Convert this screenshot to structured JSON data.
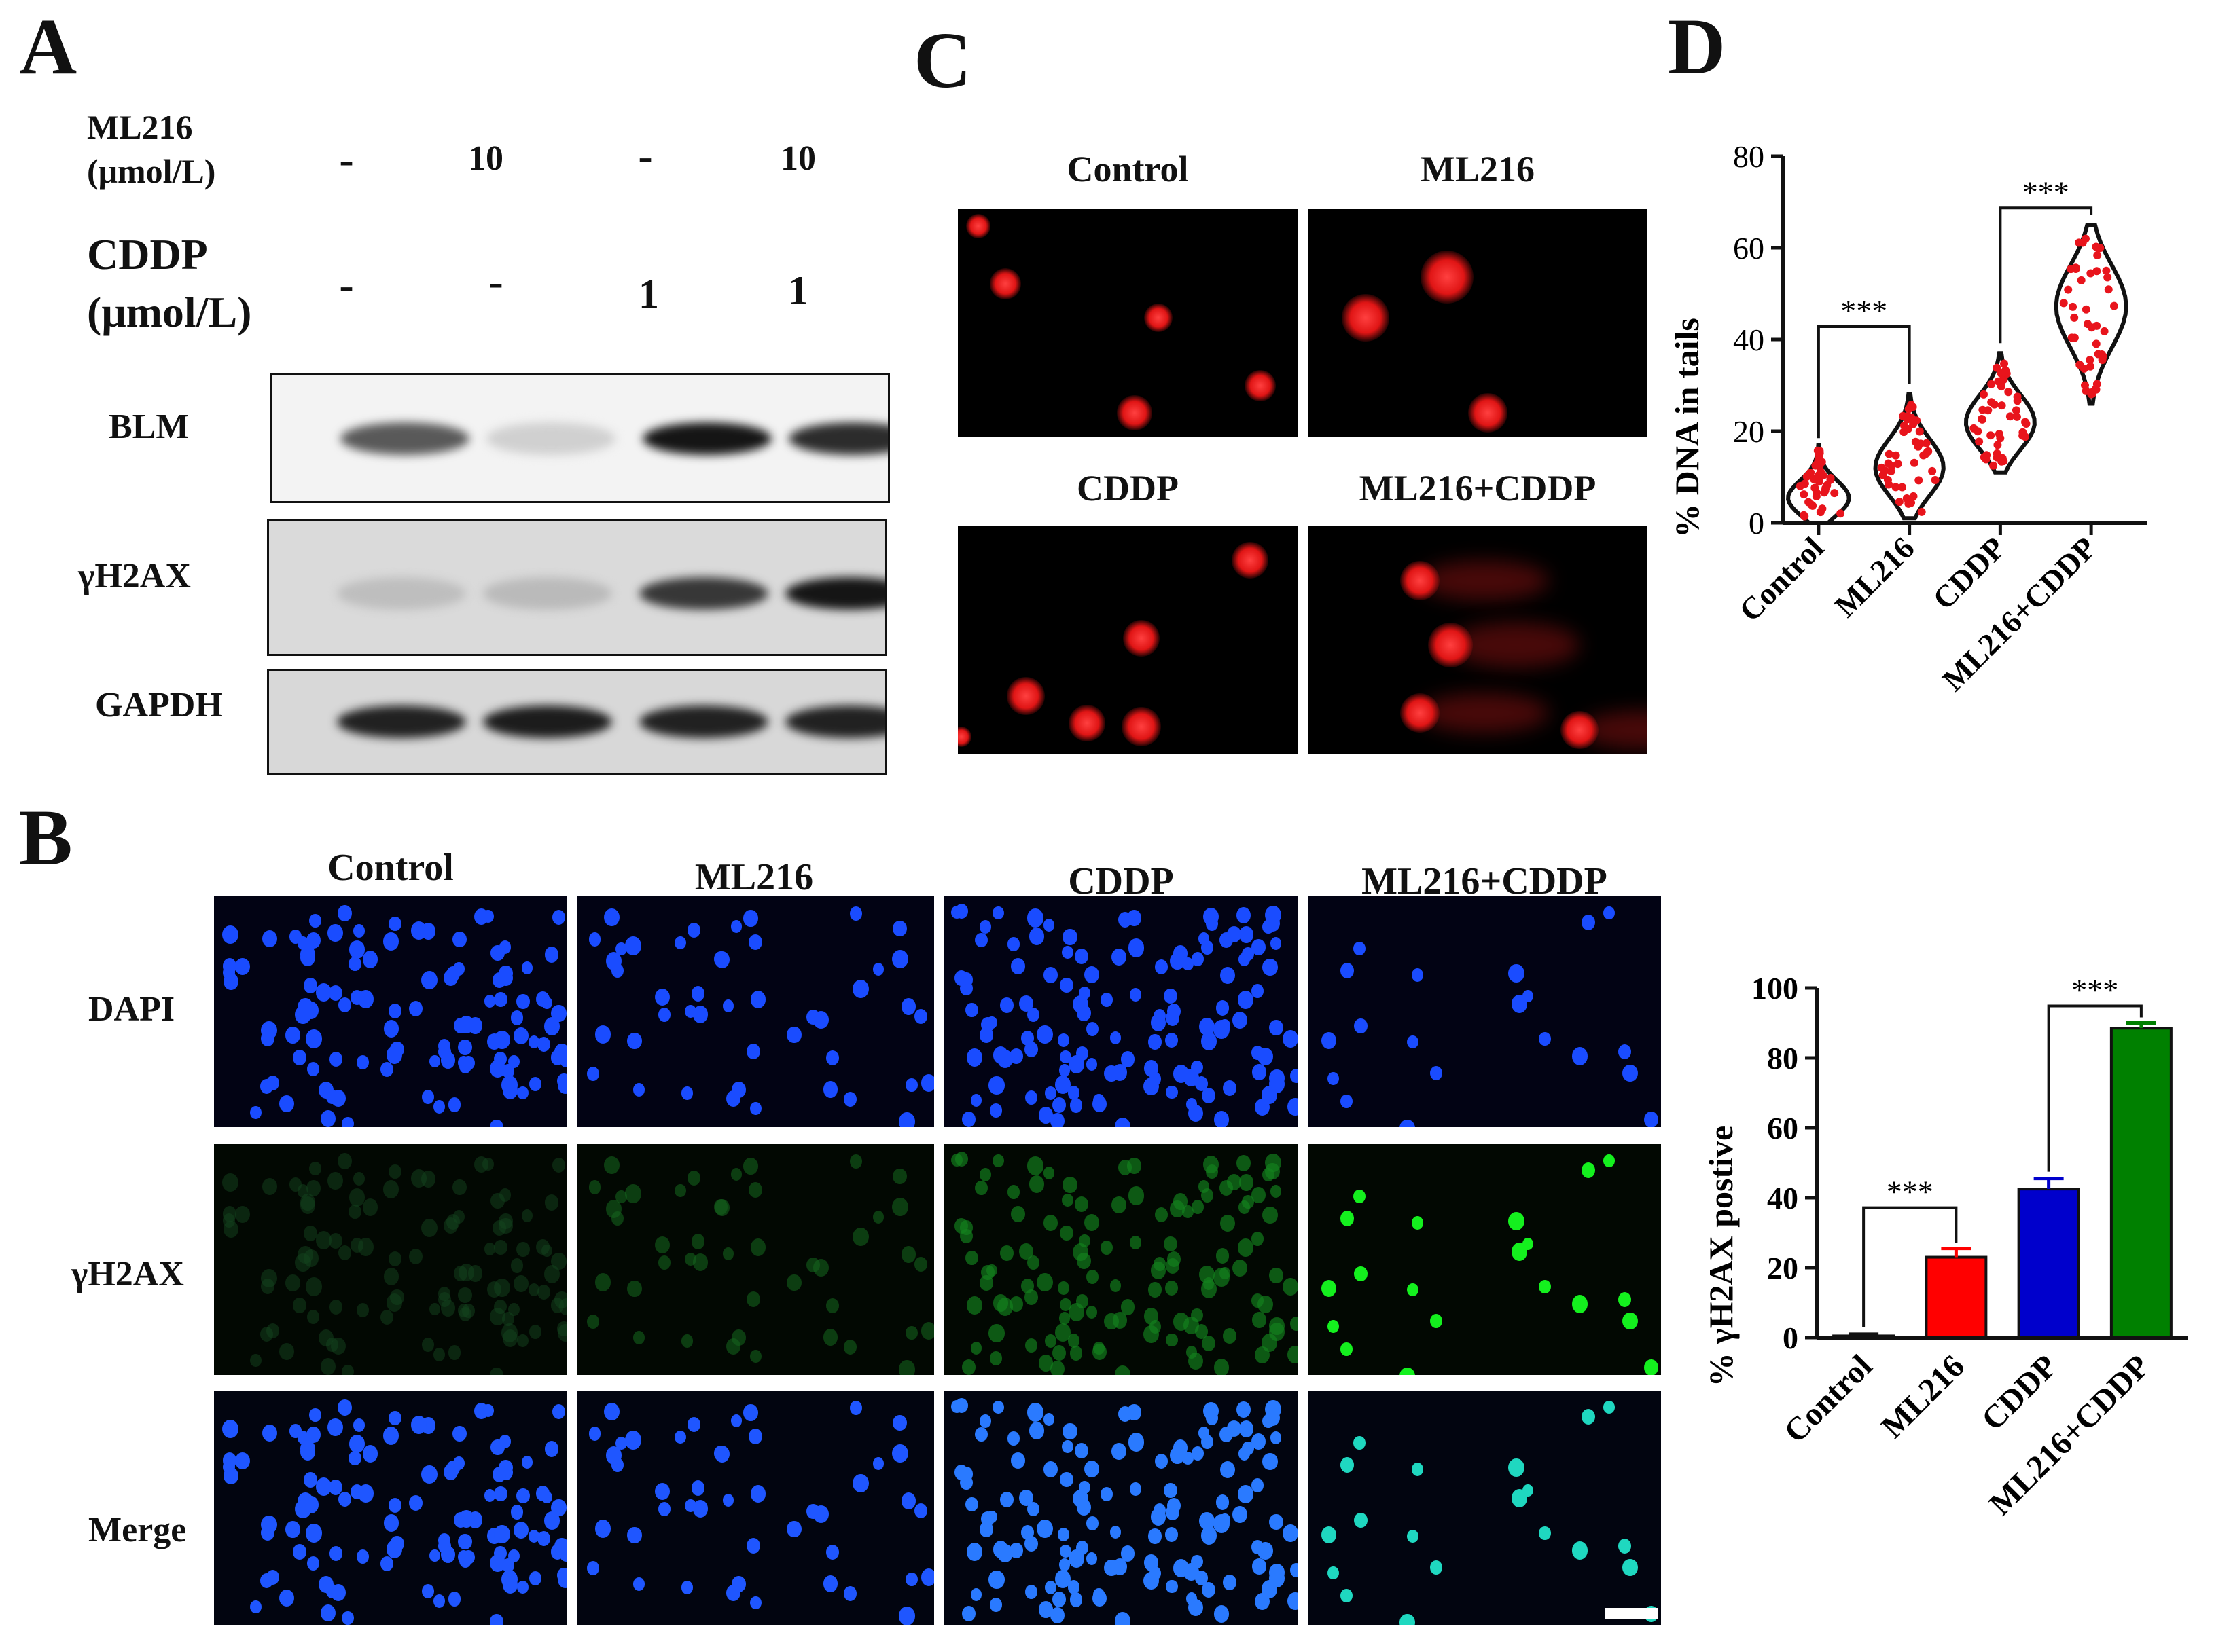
{
  "panels": {
    "a": "A",
    "b": "B",
    "c": "C",
    "d": "D"
  },
  "western": {
    "ml216_label": "ML216",
    "ml216_unit": "(μmol/L)",
    "ml216_values": [
      "-",
      "10",
      "-",
      "10"
    ],
    "cddp_label": "CDDP",
    "cddp_unit": "(μmol/L)",
    "cddp_values": [
      "-",
      "-",
      "1",
      "1"
    ],
    "rows": [
      {
        "label": "BLM",
        "intensities": [
          0.65,
          0.12,
          0.95,
          0.85
        ]
      },
      {
        "label": "γH2AX",
        "intensities": [
          0.2,
          0.22,
          0.8,
          0.95
        ]
      },
      {
        "label": "GAPDH",
        "intensities": [
          0.9,
          0.92,
          0.9,
          0.9
        ]
      }
    ]
  },
  "comet": {
    "groups": [
      "Control",
      "ML216",
      "CDDP",
      "ML216+CDDP"
    ]
  },
  "colors": {
    "control": "#ff0000",
    "ml216": "#ff0000",
    "cddp": "#0000cc",
    "combo": "#008000",
    "violin_points": "#e8141c"
  },
  "if_panel": {
    "columns": [
      "Control",
      "ML216",
      "CDDP",
      "ML216+CDDP"
    ],
    "rows": [
      "DAPI",
      "γH2AX",
      "Merge"
    ]
  },
  "chart_data": [
    {
      "type": "violin",
      "ylabel": "% DNA in tails",
      "categories": [
        "Control",
        "ML216",
        "CDDP",
        "ML216+CDDP"
      ],
      "ylim": [
        0,
        80
      ],
      "yticks": [
        0,
        20,
        40,
        60,
        80
      ],
      "medians": [
        4,
        11,
        21,
        48
      ],
      "ranges": [
        [
          0,
          17
        ],
        [
          1,
          28
        ],
        [
          11,
          37
        ],
        [
          26,
          65
        ]
      ],
      "significance": [
        {
          "from": "Control",
          "to": "ML216",
          "label": "***"
        },
        {
          "from": "CDDP",
          "to": "ML216+CDDP",
          "label": "***"
        }
      ]
    },
    {
      "type": "bar",
      "ylabel": "% γH2AX postive",
      "categories": [
        "Control",
        "ML216",
        "CDDP",
        "ML216+CDDP"
      ],
      "values": [
        0.5,
        23,
        42.5,
        88.5
      ],
      "errors": [
        0.5,
        2.5,
        3,
        1.5
      ],
      "ylim": [
        0,
        100
      ],
      "yticks": [
        0,
        20,
        40,
        60,
        80,
        100
      ],
      "significance": [
        {
          "from": "Control",
          "to": "ML216",
          "label": "***"
        },
        {
          "from": "CDDP",
          "to": "ML216+CDDP",
          "label": "***"
        }
      ]
    }
  ]
}
